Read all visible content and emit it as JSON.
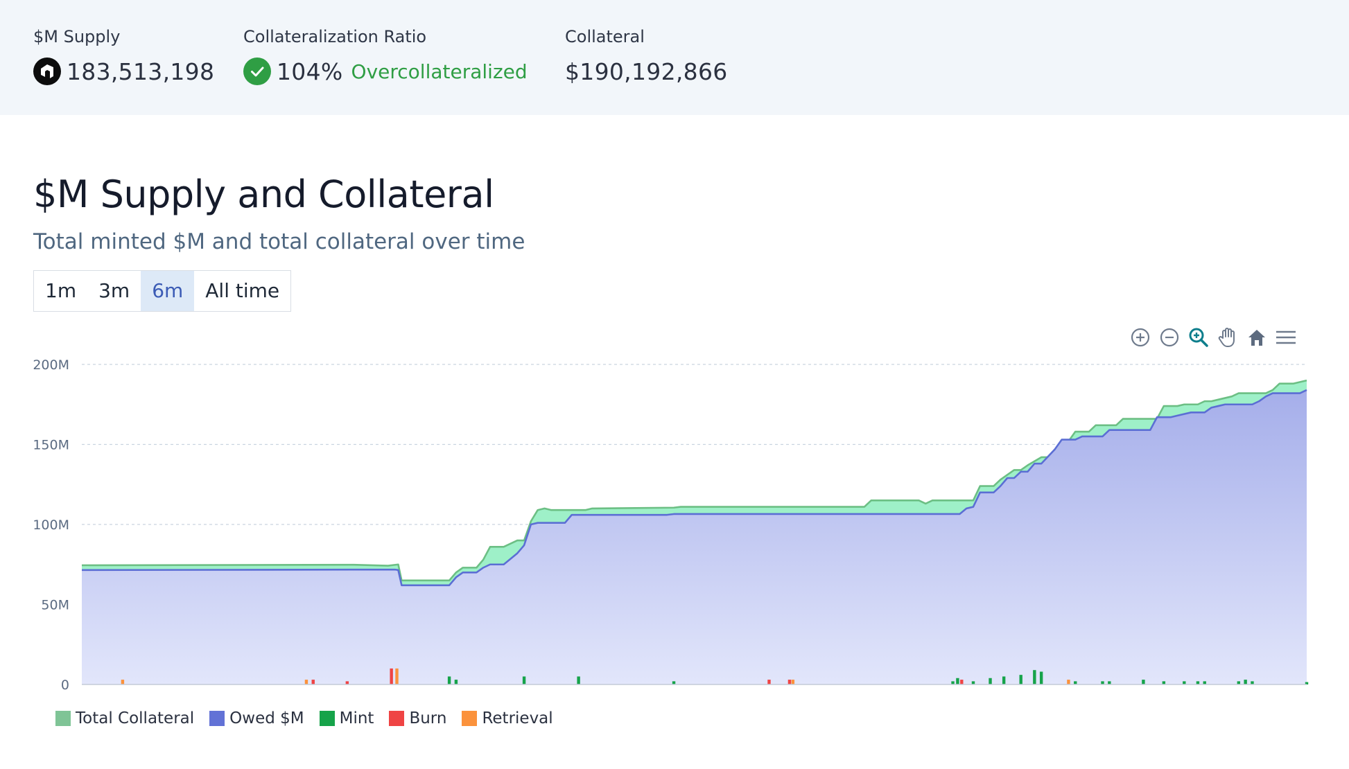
{
  "stats": {
    "supply": {
      "label": "$M Supply",
      "value": "183,513,198",
      "icon": "m-token-icon"
    },
    "ratio": {
      "label": "Collateralization Ratio",
      "value": "104%",
      "status": "Overcollateralized",
      "icon": "check-circle-icon",
      "status_color": "#2f9e44"
    },
    "collateral": {
      "label": "Collateral",
      "value": "$190,192,866"
    }
  },
  "chart_header": {
    "title": "$M Supply and Collateral",
    "subtitle": "Total minted $M and total collateral over time"
  },
  "range_buttons": [
    {
      "label": "1m",
      "active": false
    },
    {
      "label": "3m",
      "active": false
    },
    {
      "label": "6m",
      "active": true
    },
    {
      "label": "All time",
      "active": false
    }
  ],
  "toolbar": [
    "zoom-in-icon",
    "zoom-out-icon",
    "zoom-select-icon",
    "pan-hand-icon",
    "reset-home-icon",
    "menu-icon"
  ],
  "colors": {
    "collateral_fill": "#9ef0c8",
    "collateral_line": "#6cbf84",
    "owed_line": "#5b6ed4",
    "owed_fill_top": "#a5aeea",
    "owed_fill_bottom": "#e2e6fb",
    "mint": "#16a34a",
    "burn": "#ef4444",
    "retrieval": "#fb923c"
  },
  "chart_data": {
    "type": "area",
    "title": "$M Supply and Collateral",
    "subtitle": "Total minted $M and total collateral over time",
    "x_range": [
      0,
      180
    ],
    "ylim": [
      0,
      200000000
    ],
    "yticks": [
      {
        "value": 0,
        "label": "0"
      },
      {
        "value": 50000000,
        "label": "50M"
      },
      {
        "value": 100000000,
        "label": "100M"
      },
      {
        "value": 150000000,
        "label": "150M"
      },
      {
        "value": 200000000,
        "label": "200M"
      }
    ],
    "grid": true,
    "legend_position": "bottom-left",
    "series": [
      {
        "name": "Total Collateral",
        "type": "area",
        "points": [
          [
            0,
            74.5
          ],
          [
            40,
            74.8
          ],
          [
            45,
            74.2
          ],
          [
            46.5,
            75
          ],
          [
            47,
            65
          ],
          [
            54,
            65
          ],
          [
            55,
            70
          ],
          [
            56,
            73
          ],
          [
            58,
            73
          ],
          [
            59,
            78
          ],
          [
            60,
            86
          ],
          [
            62,
            86
          ],
          [
            64,
            90
          ],
          [
            65,
            90
          ],
          [
            66,
            102
          ],
          [
            67,
            109
          ],
          [
            68,
            110
          ],
          [
            69,
            109
          ],
          [
            74,
            109
          ],
          [
            75,
            110
          ],
          [
            87,
            110.5
          ],
          [
            88,
            111
          ],
          [
            115,
            111
          ],
          [
            116,
            115
          ],
          [
            123,
            115
          ],
          [
            124,
            113
          ],
          [
            125,
            115
          ],
          [
            131,
            115
          ],
          [
            132,
            124
          ],
          [
            134,
            124
          ],
          [
            135,
            128
          ],
          [
            137,
            134
          ],
          [
            138,
            134
          ],
          [
            139,
            137
          ],
          [
            141,
            142
          ],
          [
            143,
            142
          ],
          [
            145,
            152
          ],
          [
            146,
            158
          ],
          [
            148,
            158
          ],
          [
            149,
            162
          ],
          [
            152,
            162
          ],
          [
            153,
            166
          ],
          [
            158,
            166
          ],
          [
            159,
            174
          ],
          [
            161,
            174
          ],
          [
            162,
            175
          ],
          [
            164,
            175
          ],
          [
            165,
            177
          ],
          [
            166,
            177
          ],
          [
            167,
            178
          ],
          [
            169,
            180
          ],
          [
            170,
            182
          ],
          [
            174,
            182
          ],
          [
            175,
            184
          ],
          [
            176,
            188
          ],
          [
            178,
            188
          ],
          [
            180,
            190
          ]
        ]
      },
      {
        "name": "Owed $M",
        "type": "area",
        "points": [
          [
            0,
            71.5
          ],
          [
            46,
            71.8
          ],
          [
            46.5,
            71.5
          ],
          [
            47,
            62
          ],
          [
            54,
            62
          ],
          [
            55,
            67
          ],
          [
            56,
            70
          ],
          [
            58,
            70
          ],
          [
            59,
            73
          ],
          [
            60,
            75
          ],
          [
            62,
            75
          ],
          [
            64,
            82
          ],
          [
            65,
            87
          ],
          [
            66,
            100
          ],
          [
            67,
            101
          ],
          [
            71,
            101
          ],
          [
            72,
            106
          ],
          [
            86,
            106
          ],
          [
            87,
            106.5
          ],
          [
            129,
            106.5
          ],
          [
            130,
            110
          ],
          [
            131,
            111
          ],
          [
            132,
            120
          ],
          [
            134,
            120
          ],
          [
            135,
            124
          ],
          [
            136,
            129
          ],
          [
            137,
            129
          ],
          [
            138,
            133
          ],
          [
            139,
            133
          ],
          [
            140,
            138
          ],
          [
            141,
            138
          ],
          [
            143,
            147
          ],
          [
            144,
            153
          ],
          [
            146,
            153
          ],
          [
            147,
            155
          ],
          [
            150,
            155
          ],
          [
            151,
            159
          ],
          [
            157,
            159
          ],
          [
            158,
            167
          ],
          [
            160,
            167
          ],
          [
            161,
            168
          ],
          [
            163,
            170
          ],
          [
            165,
            170
          ],
          [
            166,
            173
          ],
          [
            167,
            174
          ],
          [
            168,
            175
          ],
          [
            172,
            175
          ],
          [
            173,
            177
          ],
          [
            174,
            180
          ],
          [
            175,
            182
          ],
          [
            179,
            182
          ],
          [
            180,
            184
          ]
        ]
      },
      {
        "name": "Mint",
        "type": "bar",
        "points": [
          [
            54,
            5
          ],
          [
            55,
            3
          ],
          [
            65,
            5
          ],
          [
            73,
            5
          ],
          [
            87,
            2
          ],
          [
            128,
            2
          ],
          [
            128.7,
            4
          ],
          [
            131,
            2
          ],
          [
            133.5,
            4
          ],
          [
            135.5,
            5
          ],
          [
            138,
            6
          ],
          [
            140,
            9
          ],
          [
            141,
            8
          ],
          [
            146,
            2
          ],
          [
            150,
            2
          ],
          [
            151,
            2
          ],
          [
            156,
            3
          ],
          [
            159,
            2
          ],
          [
            162,
            2
          ],
          [
            164,
            2
          ],
          [
            165,
            2
          ],
          [
            170,
            2
          ],
          [
            171,
            3
          ],
          [
            172,
            2
          ],
          [
            180,
            1.5
          ]
        ]
      },
      {
        "name": "Burn",
        "type": "bar",
        "points": [
          [
            34,
            3
          ],
          [
            39,
            2
          ],
          [
            45.5,
            10
          ],
          [
            101,
            3
          ],
          [
            104,
            3
          ],
          [
            129.3,
            3
          ]
        ]
      },
      {
        "name": "Retrieval",
        "type": "bar",
        "points": [
          [
            6,
            3
          ],
          [
            33,
            3
          ],
          [
            46.3,
            10
          ],
          [
            104.5,
            3
          ],
          [
            145,
            3
          ]
        ]
      }
    ]
  }
}
